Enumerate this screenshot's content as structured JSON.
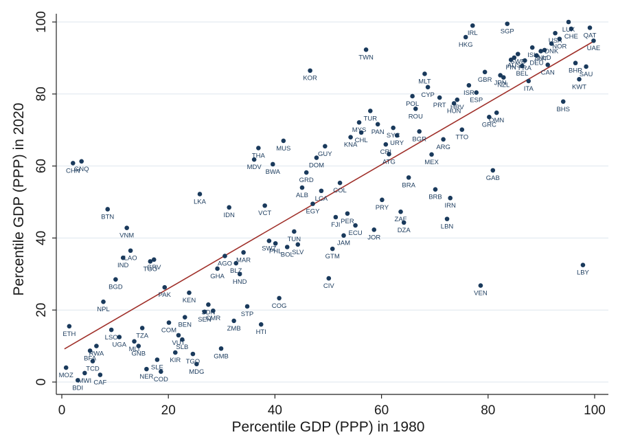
{
  "chart_data": {
    "type": "scatter",
    "xlabel": "Percentile GDP (PPP) in 1980",
    "ylabel": "Percentile GDP (PPP) in 2020",
    "xlim": [
      0,
      100
    ],
    "ylim": [
      0,
      100
    ],
    "x_ticks": [
      0,
      20,
      40,
      60,
      80,
      100
    ],
    "y_ticks": [
      0,
      20,
      40,
      60,
      80,
      100
    ],
    "grid": "horizontal",
    "colors": {
      "point": "#1a3a5c",
      "fit_line": "#a0302a",
      "grid": "#dde6ee"
    },
    "fit_line": {
      "x": [
        0.5,
        100
      ],
      "y": [
        9.2,
        94.8
      ]
    },
    "points": [
      {
        "label": "MOZ",
        "x": 0.8,
        "y": 4
      },
      {
        "label": "BDI",
        "x": 3,
        "y": 0.5
      },
      {
        "label": "MWI",
        "x": 4.3,
        "y": 2.5
      },
      {
        "label": "ETH",
        "x": 1.4,
        "y": 15.5
      },
      {
        "label": "CHN",
        "x": 2.1,
        "y": 60.8
      },
      {
        "label": "GNQ",
        "x": 3.7,
        "y": 61.3
      },
      {
        "label": "BFA",
        "x": 5.3,
        "y": 8.7
      },
      {
        "label": "RWA",
        "x": 6.5,
        "y": 10
      },
      {
        "label": "TCD",
        "x": 5.8,
        "y": 5.8
      },
      {
        "label": "CAF",
        "x": 7.2,
        "y": 2
      },
      {
        "label": "BTN",
        "x": 8.6,
        "y": 48
      },
      {
        "label": "NPL",
        "x": 7.8,
        "y": 22.3
      },
      {
        "label": "LSO",
        "x": 9.3,
        "y": 14.5
      },
      {
        "label": "UGA",
        "x": 10.8,
        "y": 12.5
      },
      {
        "label": "BGD",
        "x": 10.1,
        "y": 28.5
      },
      {
        "label": "VNM",
        "x": 12.2,
        "y": 42.8
      },
      {
        "label": "IND",
        "x": 11.5,
        "y": 34.5
      },
      {
        "label": "LAO",
        "x": 12.9,
        "y": 36.5
      },
      {
        "label": "MLI",
        "x": 13.6,
        "y": 11.3
      },
      {
        "label": "GNB",
        "x": 14.4,
        "y": 10
      },
      {
        "label": "TZA",
        "x": 15.1,
        "y": 15
      },
      {
        "label": "NER",
        "x": 15.9,
        "y": 3.6
      },
      {
        "label": "SLE",
        "x": 17.9,
        "y": 6.2
      },
      {
        "label": "COD",
        "x": 18.6,
        "y": 2.9
      },
      {
        "label": "TGO",
        "x": 16.6,
        "y": 33.5
      },
      {
        "label": "GRV",
        "x": 17.3,
        "y": 34
      },
      {
        "label": "PAK",
        "x": 19.3,
        "y": 26.3
      },
      {
        "label": "COM",
        "x": 20.1,
        "y": 16.5
      },
      {
        "label": "KIR",
        "x": 21.3,
        "y": 8.2
      },
      {
        "label": "VUT",
        "x": 21.9,
        "y": 13
      },
      {
        "label": "SLB",
        "x": 22.6,
        "y": 11.8
      },
      {
        "label": "BEN",
        "x": 23.1,
        "y": 18
      },
      {
        "label": "KEN",
        "x": 23.9,
        "y": 24.8
      },
      {
        "label": "TGO",
        "x": 24.6,
        "y": 7.8
      },
      {
        "label": "MDG",
        "x": 25.3,
        "y": 5
      },
      {
        "label": "LKA",
        "x": 25.9,
        "y": 52.2
      },
      {
        "label": "SEN",
        "x": 26.8,
        "y": 19.5
      },
      {
        "label": "SDN",
        "x": 27.5,
        "y": 21.5
      },
      {
        "label": "CMR",
        "x": 28.4,
        "y": 19.8
      },
      {
        "label": "GHA",
        "x": 29.2,
        "y": 31.5
      },
      {
        "label": "AGO",
        "x": 30.6,
        "y": 35
      },
      {
        "label": "GMB",
        "x": 29.9,
        "y": 9.3
      },
      {
        "label": "IDN",
        "x": 31.4,
        "y": 48.5
      },
      {
        "label": "ZMB",
        "x": 32.3,
        "y": 17
      },
      {
        "label": "BLZ",
        "x": 32.7,
        "y": 33
      },
      {
        "label": "HND",
        "x": 33.4,
        "y": 30
      },
      {
        "label": "MAR",
        "x": 34.1,
        "y": 36
      },
      {
        "label": "STP",
        "x": 34.8,
        "y": 21
      },
      {
        "label": "MDV",
        "x": 36.1,
        "y": 61.8
      },
      {
        "label": "THA",
        "x": 36.9,
        "y": 65
      },
      {
        "label": "HTI",
        "x": 37.4,
        "y": 16
      },
      {
        "label": "VCT",
        "x": 38.1,
        "y": 49
      },
      {
        "label": "SWZ",
        "x": 38.9,
        "y": 39.2
      },
      {
        "label": "BWA",
        "x": 39.6,
        "y": 60.5
      },
      {
        "label": "PHL",
        "x": 40.1,
        "y": 38.5
      },
      {
        "label": "COG",
        "x": 40.8,
        "y": 23.3
      },
      {
        "label": "MUS",
        "x": 41.6,
        "y": 67
      },
      {
        "label": "BOL",
        "x": 42.3,
        "y": 37.5
      },
      {
        "label": "TUN",
        "x": 43.6,
        "y": 41.8
      },
      {
        "label": "SLV",
        "x": 44.3,
        "y": 38.2
      },
      {
        "label": "ALB",
        "x": 45.1,
        "y": 54
      },
      {
        "label": "GRD",
        "x": 45.9,
        "y": 58.2
      },
      {
        "label": "KOR",
        "x": 46.6,
        "y": 86.5
      },
      {
        "label": "EGY",
        "x": 47.1,
        "y": 49.5
      },
      {
        "label": "DOM",
        "x": 47.8,
        "y": 62.3
      },
      {
        "label": "LCA",
        "x": 48.7,
        "y": 53.1
      },
      {
        "label": "GUY",
        "x": 49.4,
        "y": 65.5
      },
      {
        "label": "CIV",
        "x": 50.1,
        "y": 28.8
      },
      {
        "label": "GTM",
        "x": 50.8,
        "y": 37
      },
      {
        "label": "FJI",
        "x": 51.4,
        "y": 45.8
      },
      {
        "label": "COL",
        "x": 52.2,
        "y": 55.3
      },
      {
        "label": "JAM",
        "x": 52.9,
        "y": 40.7
      },
      {
        "label": "PER",
        "x": 53.6,
        "y": 46.8
      },
      {
        "label": "KNA",
        "x": 54.2,
        "y": 68
      },
      {
        "label": "ECU",
        "x": 55.1,
        "y": 43.5
      },
      {
        "label": "MYS",
        "x": 55.8,
        "y": 72.1
      },
      {
        "label": "CHL",
        "x": 56.2,
        "y": 69.3
      },
      {
        "label": "TWN",
        "x": 57.1,
        "y": 92.3
      },
      {
        "label": "TUR",
        "x": 57.9,
        "y": 75.3
      },
      {
        "label": "JOR",
        "x": 58.6,
        "y": 42.3
      },
      {
        "label": "PAN",
        "x": 59.3,
        "y": 71.6
      },
      {
        "label": "PRY",
        "x": 60.1,
        "y": 50.6
      },
      {
        "label": "CRI",
        "x": 60.8,
        "y": 66
      },
      {
        "label": "ATG",
        "x": 61.4,
        "y": 63.3
      },
      {
        "label": "SYC",
        "x": 62.2,
        "y": 70.6
      },
      {
        "label": "URY",
        "x": 62.9,
        "y": 68.5
      },
      {
        "label": "ZAF",
        "x": 63.6,
        "y": 47.3
      },
      {
        "label": "DZA",
        "x": 64.2,
        "y": 44.3
      },
      {
        "label": "BRA",
        "x": 65.1,
        "y": 56.8
      },
      {
        "label": "POL",
        "x": 65.8,
        "y": 79.4
      },
      {
        "label": "ROU",
        "x": 66.4,
        "y": 75.9
      },
      {
        "label": "BGR",
        "x": 67.1,
        "y": 69.6
      },
      {
        "label": "MLT",
        "x": 68.1,
        "y": 85.6
      },
      {
        "label": "CYP",
        "x": 68.7,
        "y": 81.9
      },
      {
        "label": "MEX",
        "x": 69.4,
        "y": 63.2
      },
      {
        "label": "BRB",
        "x": 70.1,
        "y": 53.5
      },
      {
        "label": "PRT",
        "x": 70.9,
        "y": 79
      },
      {
        "label": "ARG",
        "x": 71.6,
        "y": 67.4
      },
      {
        "label": "LBN",
        "x": 72.3,
        "y": 45.3
      },
      {
        "label": "IRN",
        "x": 72.9,
        "y": 51.1
      },
      {
        "label": "HUN",
        "x": 73.6,
        "y": 77.4
      },
      {
        "label": "HRV",
        "x": 74.2,
        "y": 78.4
      },
      {
        "label": "TTO",
        "x": 75.1,
        "y": 70.1
      },
      {
        "label": "HKG",
        "x": 75.8,
        "y": 95.8
      },
      {
        "label": "ISR",
        "x": 76.4,
        "y": 82.4
      },
      {
        "label": "IRL",
        "x": 77.1,
        "y": 99
      },
      {
        "label": "ESP",
        "x": 77.8,
        "y": 80.4
      },
      {
        "label": "VEN",
        "x": 78.6,
        "y": 26.8
      },
      {
        "label": "GBR",
        "x": 79.4,
        "y": 86.1
      },
      {
        "label": "GRC",
        "x": 80.2,
        "y": 73.6
      },
      {
        "label": "GAB",
        "x": 80.9,
        "y": 58.8
      },
      {
        "label": "OMN",
        "x": 81.6,
        "y": 74.8
      },
      {
        "label": "JPN",
        "x": 82.3,
        "y": 85.2
      },
      {
        "label": "NZL",
        "x": 82.9,
        "y": 84.6
      },
      {
        "label": "SGP",
        "x": 83.6,
        "y": 99.5
      },
      {
        "label": "FIN",
        "x": 84.3,
        "y": 89.5
      },
      {
        "label": "AUS",
        "x": 84.9,
        "y": 90.1
      },
      {
        "label": "SWE",
        "x": 85.6,
        "y": 91.1
      },
      {
        "label": "BEL",
        "x": 86.4,
        "y": 87.8
      },
      {
        "label": "FRA",
        "x": 86.9,
        "y": 89.3
      },
      {
        "label": "ITA",
        "x": 87.6,
        "y": 83.6
      },
      {
        "label": "ISL",
        "x": 88.3,
        "y": 92.9
      },
      {
        "label": "DEU",
        "x": 89.1,
        "y": 90.7
      },
      {
        "label": "AUT",
        "x": 89.9,
        "y": 91.9
      },
      {
        "label": "NLD",
        "x": 90.6,
        "y": 92.2
      },
      {
        "label": "CAN",
        "x": 91.2,
        "y": 88.1
      },
      {
        "label": "DNK",
        "x": 91.9,
        "y": 94
      },
      {
        "label": "USA",
        "x": 92.6,
        "y": 96.9
      },
      {
        "label": "NOR",
        "x": 93.4,
        "y": 95.3
      },
      {
        "label": "LUX",
        "x": 95.1,
        "y": 100
      },
      {
        "label": "BHS",
        "x": 94.1,
        "y": 77.9
      },
      {
        "label": "CHE",
        "x": 95.6,
        "y": 98.1
      },
      {
        "label": "BHR",
        "x": 96.4,
        "y": 88.6
      },
      {
        "label": "KWT",
        "x": 97.1,
        "y": 84.1
      },
      {
        "label": "LBY",
        "x": 97.8,
        "y": 32.5
      },
      {
        "label": "SAU",
        "x": 98.4,
        "y": 87.6
      },
      {
        "label": "QAT",
        "x": 99.1,
        "y": 98.4
      },
      {
        "label": "UAE",
        "x": 99.8,
        "y": 94.8
      }
    ]
  }
}
